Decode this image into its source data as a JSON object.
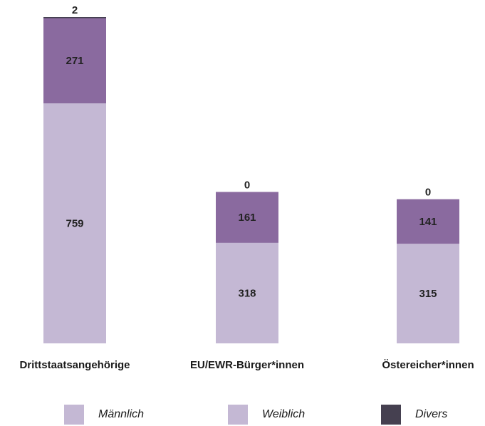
{
  "chart_data": {
    "type": "bar",
    "stacked": true,
    "categories": [
      "Drittstaatsangehörige",
      "EU/EWR-Bürger*innen",
      "Östereicher*innen"
    ],
    "series": [
      {
        "name": "Männlich",
        "values": [
          759,
          318,
          315
        ],
        "color": "#c4b8d4"
      },
      {
        "name": "Weiblich",
        "values": [
          271,
          161,
          141
        ],
        "color": "#8a6a9f"
      },
      {
        "name": "Divers",
        "values": [
          2,
          0,
          0
        ],
        "color": "#454050"
      }
    ],
    "title": "",
    "xlabel": "",
    "ylabel": "",
    "ylim": [
      0,
      1032
    ],
    "grid": false,
    "legend_position": "bottom"
  }
}
